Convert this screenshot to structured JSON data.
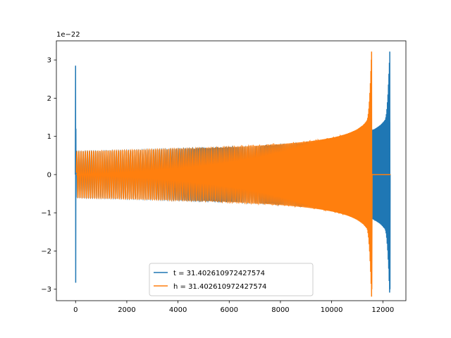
{
  "chart_data": {
    "type": "line",
    "title": "",
    "xlabel": "",
    "ylabel": "",
    "y_offset_label": "1e−22",
    "xlim": [
      -750,
      12900
    ],
    "ylim": [
      -3.3,
      3.5
    ],
    "x_ticks": [
      0,
      2000,
      4000,
      6000,
      8000,
      10000,
      12000
    ],
    "x_tick_labels": [
      "0",
      "2000",
      "4000",
      "6000",
      "8000",
      "10000",
      "12000"
    ],
    "y_ticks": [
      -3,
      -2,
      -1,
      0,
      1,
      2,
      3
    ],
    "y_tick_labels": [
      "−3",
      "−2",
      "−1",
      "0",
      "1",
      "2",
      "3"
    ],
    "grid": false,
    "legend_position": "lower center",
    "series": [
      {
        "name": "t = 31.402610972427574",
        "color": "#1f77b4",
        "description_points": {
          "start_spike": {
            "x": 0,
            "ymax": 2.85,
            "ymin": -2.83
          },
          "envelope_start": 0.6,
          "envelope_mid": {
            "x": 6000,
            "amplitude": 0.68
          },
          "envelope_late": {
            "x": 9700,
            "amplitude": 0.95
          },
          "peak": {
            "x": 12270,
            "ymax": 3.22,
            "ymin": -3.0
          },
          "end_x": 12300
        }
      },
      {
        "name": "h = 31.402610972427574",
        "color": "#ff7f0e",
        "description_points": {
          "zero_segment": [
            20,
            760
          ],
          "envelope_start": 0.6,
          "envelope_mid": {
            "x": 6000,
            "amplitude": 0.66
          },
          "envelope_late": {
            "x": 9700,
            "amplitude": 0.9
          },
          "peak": {
            "x": 11560,
            "ymax": 3.22,
            "ymin": -3.0
          },
          "tail_zero": [
            11580,
            12300
          ]
        }
      }
    ]
  }
}
